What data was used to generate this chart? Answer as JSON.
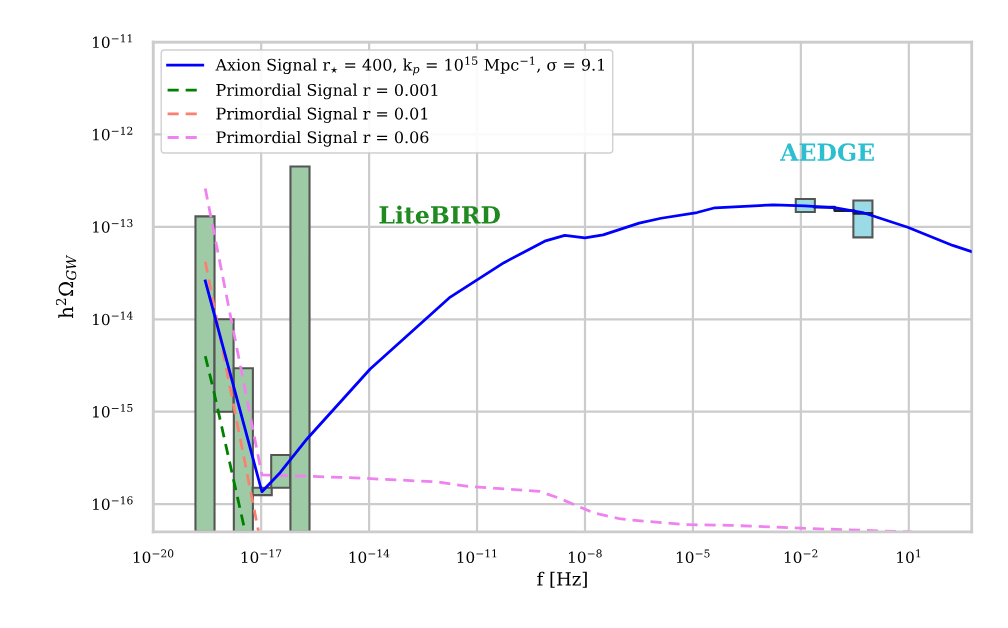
{
  "chart_data": {
    "type": "line",
    "xlabel": "f [Hz]",
    "ylabel": "h$^{2}$Ω$_{GW}$",
    "log": "xy",
    "grid": true,
    "legend": "top left",
    "xlim": [
      1e-20,
      560
    ],
    "ylim": [
      5e-17,
      1e-11
    ],
    "xticks": [
      {
        "value": 1e-20,
        "label": "10$^{−20}$"
      },
      {
        "value": 1e-17,
        "label": "10$^{−17}$"
      },
      {
        "value": 1e-14,
        "label": "10$^{−14}$"
      },
      {
        "value": 1e-11,
        "label": "10$^{−11}$"
      },
      {
        "value": 1e-08,
        "label": "10$^{−8}$"
      },
      {
        "value": 1e-05,
        "label": "10$^{−5}$"
      },
      {
        "value": 0.01,
        "label": "10$^{−2}$"
      },
      {
        "value": 10,
        "label": "10$^{1}$"
      }
    ],
    "yticks": [
      {
        "value": 1e-16,
        "label": "10$^{−16}$"
      },
      {
        "value": 1e-15,
        "label": "10$^{−15}$"
      },
      {
        "value": 1e-14,
        "label": "10$^{−14}$"
      },
      {
        "value": 1e-13,
        "label": "10$^{−13}$"
      },
      {
        "value": 1e-12,
        "label": "10$^{−12}$"
      },
      {
        "value": 1e-11,
        "label": "10$^{−11}$"
      }
    ],
    "annotations": [
      "LiteBIRD",
      "AEDGE"
    ],
    "series": [
      {
        "type": "bar",
        "color": "#9ecba6",
        "x": [
          2.75e-19,
          9.3e-19,
          3.2e-18,
          1.07e-17,
          3.5e-17,
          1.2e-16
        ],
        "base": [
          5e-17,
          1e-15,
          5e-17,
          1.25e-16,
          1.5e-16,
          5e-17
        ],
        "values": [
          1.3e-13,
          9e-15,
          2.9e-15,
          2.5e-17,
          1.9e-16,
          4.5e-13
        ]
      },
      {
        "type": "bar",
        "color": "#9adbe6",
        "x": [
          0.0133,
          0.53
        ],
        "base": [
          1.45e-13,
          7.7e-14
        ],
        "values": [
          5.5e-14,
          1.16e-13
        ]
      },
      {
        "type": "step",
        "color": "#222222",
        "x": [
          0.0245,
          0.087,
          0.3,
          0.93
        ],
        "values": [
          1.64e-13,
          1.5e-13,
          1.4e-13,
          1.4e-13
        ]
      },
      {
        "name": "Primordial Signal r = 0.001",
        "color": "#008000",
        "line_style": "dashed",
        "x": [
          2.8e-19,
          4.7e-19,
          3.6e-18
        ],
        "values": [
          4e-15,
          1.74e-15,
          5e-17
        ]
      },
      {
        "name": "Primordial Signal r = 0.01",
        "color": "#fa8072",
        "line_style": "dashed",
        "x": [
          2.8e-19,
          8.5e-18
        ],
        "values": [
          4.2e-14,
          5e-17
        ]
      },
      {
        "name": "Primordial Signal r = 0.06",
        "color": "#ee82ee",
        "line_style": "dashed",
        "x": [
          2.8e-19,
          1.05e-17,
          2.45e-15,
          7.8e-13,
          5.8e-12,
          5.6e-10,
          1.8e-09,
          1.8e-08,
          1e-07,
          5.6e-06,
          9.8e-05,
          0.03,
          12
        ],
        "values": [
          2.6e-13,
          2.07e-16,
          1.94e-16,
          1.74e-16,
          1.55e-16,
          1.37e-16,
          1.17e-16,
          8e-17,
          6.9e-17,
          6e-17,
          5.9e-17,
          5.4e-17,
          5e-17
        ]
      },
      {
        "name": "Axion Signal r$_{⋆}$ = 400, k$_{p}$ = 10$^{15}$ Mpc$^{−1}$, σ = 9.1",
        "color": "#0000ff",
        "line_style": "solid",
        "x": [
          2.8e-19,
          1.05e-17,
          3.4e-17,
          1.9e-16,
          1.07e-14,
          1.8e-12,
          5.6e-11,
          7.6e-10,
          2.75e-09,
          1e-08,
          3.2e-08,
          3.2e-07,
          1.3e-06,
          1.3e-05,
          4.1e-05,
          0.0017,
          0.013,
          0.093,
          0.52,
          9.3,
          166,
          560
        ],
        "values": [
          2.6e-14,
          1.36e-16,
          2.2e-16,
          5.1e-16,
          2.9e-15,
          1.74e-14,
          4.1e-14,
          7e-14,
          8.1e-14,
          7.6e-14,
          8.2e-14,
          1.1e-13,
          1.24e-13,
          1.43e-13,
          1.61e-13,
          1.73e-13,
          1.69e-13,
          1.61e-13,
          1.43e-13,
          9.9e-14,
          6.3e-14,
          5.4e-14
        ]
      }
    ]
  }
}
